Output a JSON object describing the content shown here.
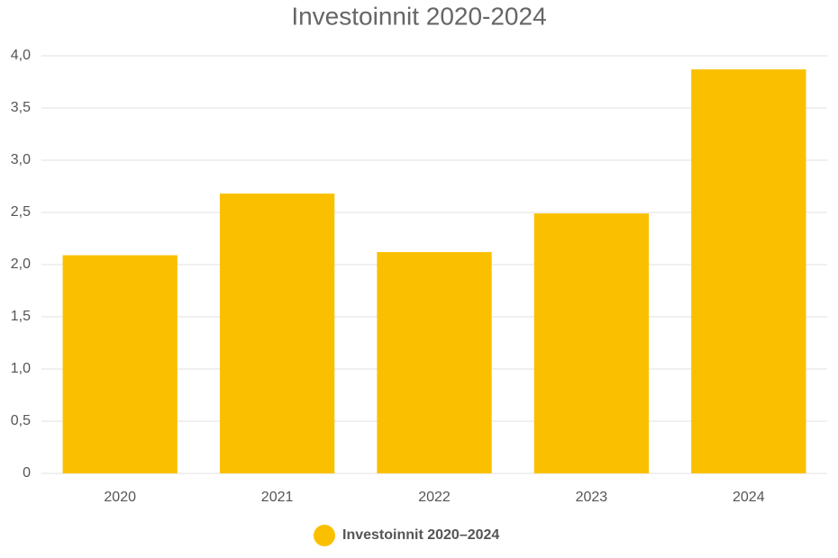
{
  "chart_data": {
    "type": "bar",
    "title": "Investoinnit 2020-2024",
    "categories": [
      "2020",
      "2021",
      "2022",
      "2023",
      "2024"
    ],
    "series": [
      {
        "name": "Investoinnit 2020–2024",
        "color": "#fac000",
        "values": [
          2.09,
          2.68,
          2.12,
          2.49,
          3.87
        ]
      }
    ],
    "ylim": [
      0,
      4
    ],
    "yticks": [
      0,
      {
        "value": 0.5,
        "label": "0,5"
      },
      {
        "value": 1,
        "label": "1,0"
      },
      {
        "value": 1.5,
        "label": "1,5"
      },
      {
        "value": 2,
        "label": "2,0"
      },
      {
        "value": 2.5,
        "label": "2,5"
      },
      {
        "value": 3,
        "label": "3,0"
      },
      {
        "value": 3.5,
        "label": "3,5"
      },
      {
        "value": 4,
        "label": "4,0"
      }
    ],
    "grid": true,
    "legend": "bottom"
  }
}
